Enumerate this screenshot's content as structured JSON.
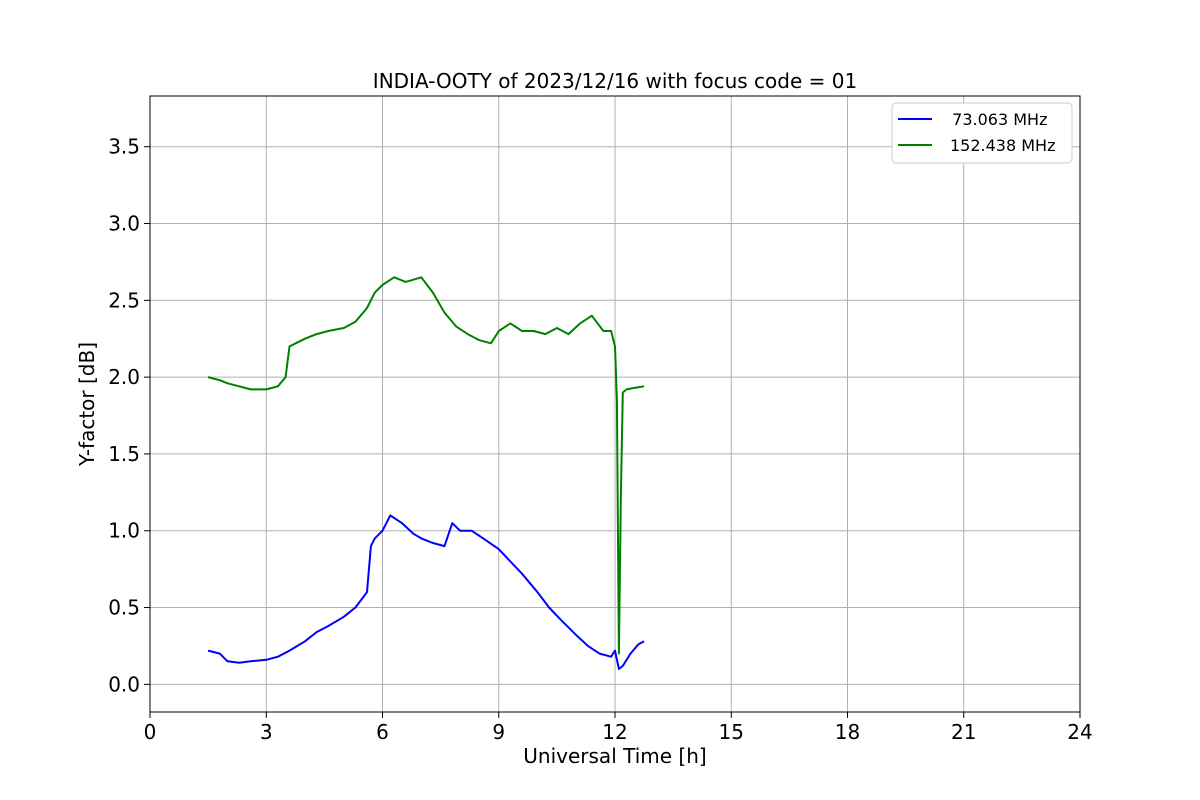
{
  "chart_data": {
    "type": "line",
    "title": "INDIA-OOTY of 2023/12/16 with focus code = 01",
    "xlabel": "Universal Time [h]",
    "ylabel": "Y-factor [dB]",
    "xlim": [
      0,
      24
    ],
    "ylim": [
      -0.18,
      3.83
    ],
    "xticks": [
      0,
      3,
      6,
      9,
      12,
      15,
      18,
      21,
      24
    ],
    "yticks": [
      0.0,
      0.5,
      1.0,
      1.5,
      2.0,
      2.5,
      3.0,
      3.5
    ],
    "xtick_labels": [
      "0",
      "3",
      "6",
      "9",
      "12",
      "15",
      "18",
      "21",
      "24"
    ],
    "ytick_labels": [
      "0.0",
      "0.5",
      "1.0",
      "1.5",
      "2.0",
      "2.5",
      "3.0",
      "3.5"
    ],
    "grid": true,
    "legend_position": "top-right",
    "series": [
      {
        "name": "  73.063 MHz",
        "color": "#0000ff",
        "x": [
          1.5,
          1.8,
          2.0,
          2.3,
          2.6,
          3.0,
          3.3,
          3.6,
          4.0,
          4.3,
          4.6,
          5.0,
          5.3,
          5.6,
          5.7,
          5.8,
          6.0,
          6.2,
          6.5,
          6.8,
          7.0,
          7.3,
          7.6,
          7.8,
          8.0,
          8.3,
          8.6,
          9.0,
          9.3,
          9.6,
          10.0,
          10.3,
          10.6,
          11.0,
          11.3,
          11.6,
          11.9,
          12.0,
          12.1,
          12.2,
          12.4,
          12.6,
          12.75
        ],
        "y": [
          0.22,
          0.2,
          0.15,
          0.14,
          0.15,
          0.16,
          0.18,
          0.22,
          0.28,
          0.34,
          0.38,
          0.44,
          0.5,
          0.6,
          0.9,
          0.95,
          1.0,
          1.1,
          1.05,
          0.98,
          0.95,
          0.92,
          0.9,
          1.05,
          1.0,
          1.0,
          0.95,
          0.88,
          0.8,
          0.72,
          0.6,
          0.5,
          0.42,
          0.32,
          0.25,
          0.2,
          0.18,
          0.22,
          0.1,
          0.12,
          0.2,
          0.26,
          0.28
        ]
      },
      {
        "name": "152.438 MHz",
        "color": "#008000",
        "x": [
          1.5,
          1.8,
          2.0,
          2.3,
          2.6,
          3.0,
          3.3,
          3.5,
          3.6,
          4.0,
          4.3,
          4.6,
          5.0,
          5.3,
          5.6,
          5.8,
          6.0,
          6.3,
          6.6,
          7.0,
          7.3,
          7.6,
          7.9,
          8.2,
          8.5,
          8.8,
          9.0,
          9.3,
          9.6,
          9.9,
          10.2,
          10.5,
          10.8,
          11.1,
          11.4,
          11.7,
          11.9,
          12.0,
          12.05,
          12.1,
          12.15,
          12.2,
          12.3,
          12.5,
          12.75
        ],
        "y": [
          2.0,
          1.98,
          1.96,
          1.94,
          1.92,
          1.92,
          1.94,
          2.0,
          2.2,
          2.25,
          2.28,
          2.3,
          2.32,
          2.36,
          2.45,
          2.55,
          2.6,
          2.65,
          2.62,
          2.65,
          2.55,
          2.42,
          2.33,
          2.28,
          2.24,
          2.22,
          2.3,
          2.35,
          2.3,
          2.3,
          2.28,
          2.32,
          2.28,
          2.35,
          2.4,
          2.3,
          2.3,
          2.2,
          1.85,
          0.2,
          1.2,
          1.9,
          1.92,
          1.93,
          1.94
        ]
      }
    ]
  }
}
